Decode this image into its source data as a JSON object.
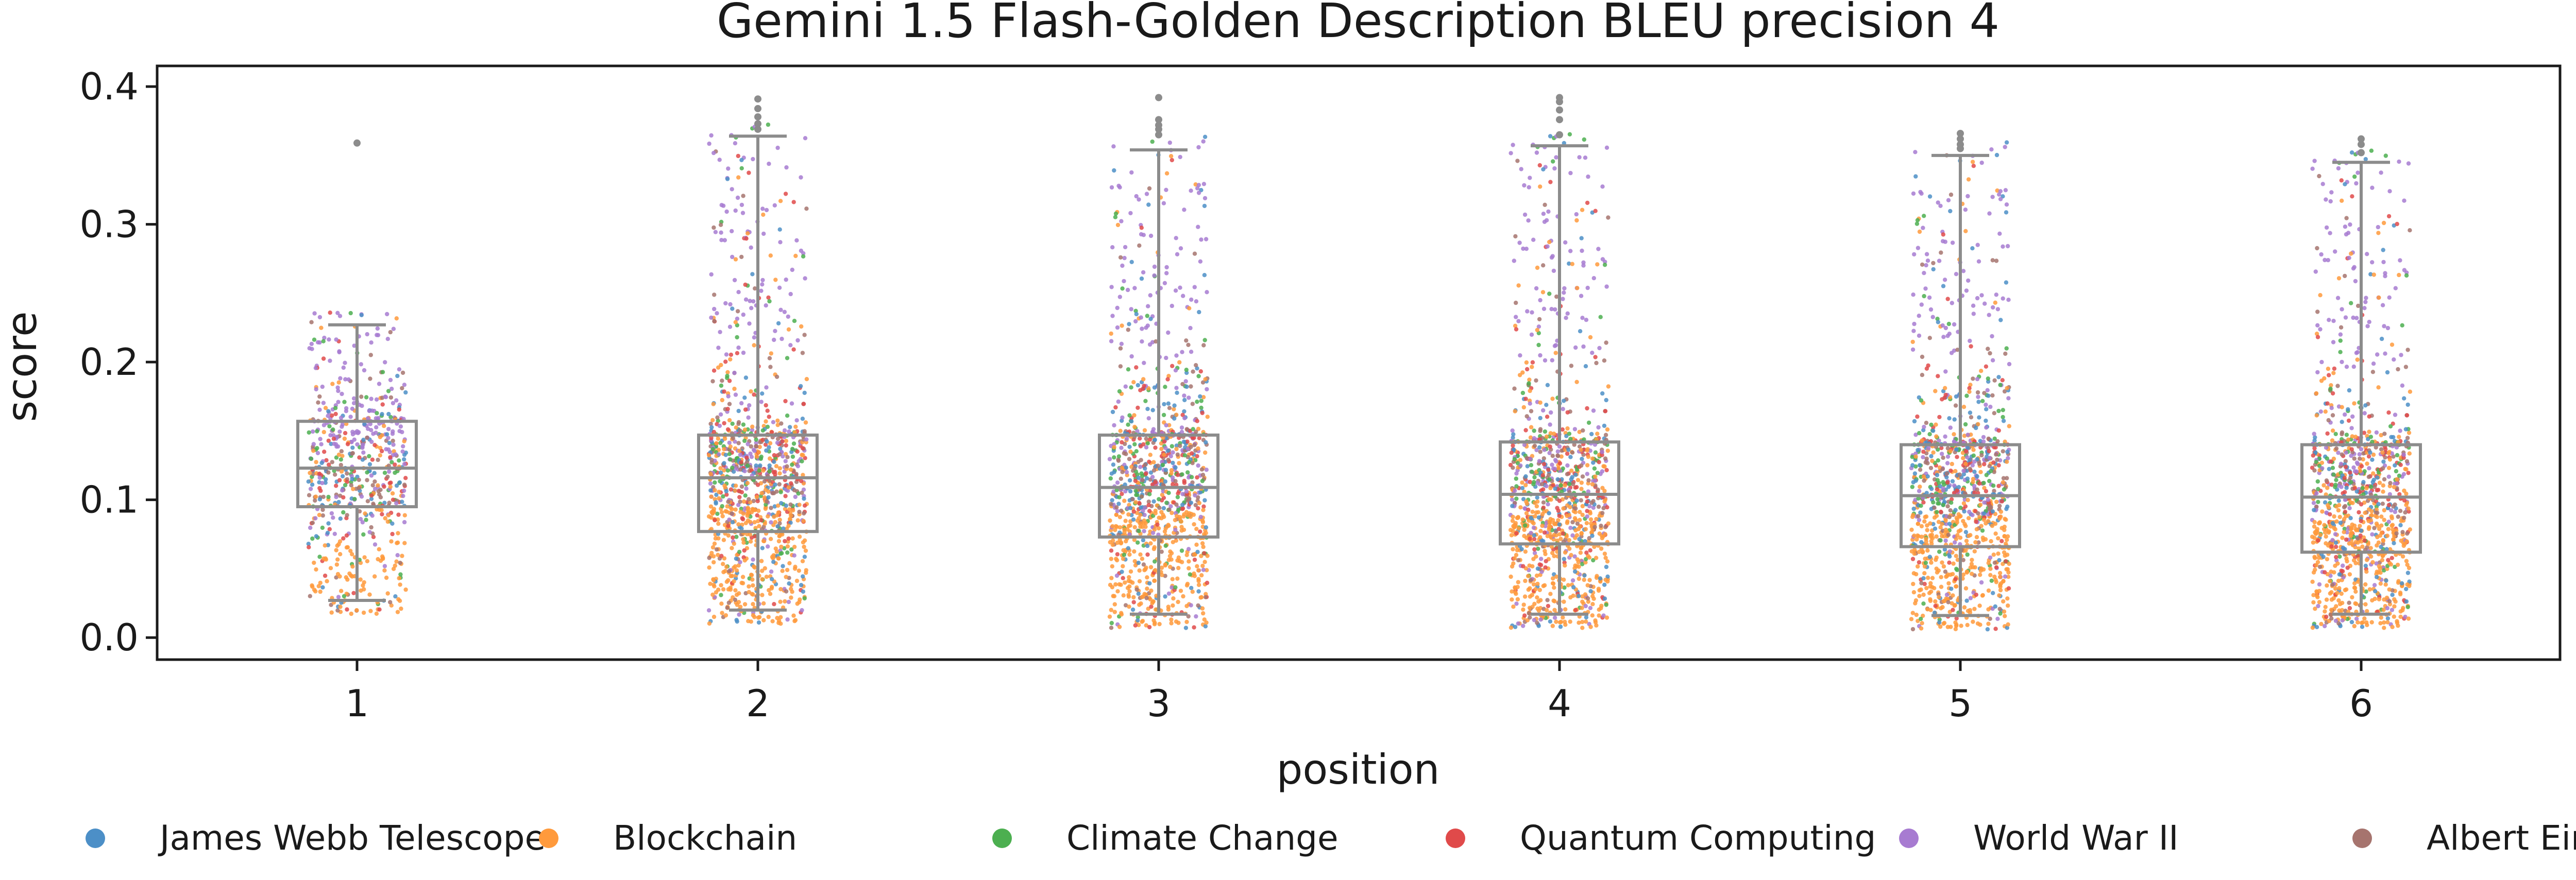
{
  "chart_data": {
    "type": "box",
    "title": "Gemini 1.5 Flash-Golden Description BLEU precision 4",
    "xlabel": "position",
    "ylabel": "score",
    "categories": [
      "1",
      "2",
      "3",
      "4",
      "5",
      "6"
    ],
    "ylim": [
      -0.016,
      0.415
    ],
    "yticks": [
      0.0,
      0.1,
      0.2,
      0.3,
      0.4
    ],
    "ytick_labels": [
      "0.0",
      "0.1",
      "0.2",
      "0.3",
      "0.4"
    ],
    "grid": false,
    "legend_position": "bottom",
    "boxes": [
      {
        "position": "1",
        "whisker_low": 0.027,
        "q1": 0.095,
        "median": 0.123,
        "q3": 0.157,
        "whisker_high": 0.227,
        "outliers": [
          0.359
        ]
      },
      {
        "position": "2",
        "whisker_low": 0.02,
        "q1": 0.077,
        "median": 0.116,
        "q3": 0.147,
        "whisker_high": 0.364,
        "outliers": [
          0.369,
          0.373,
          0.378,
          0.384,
          0.391
        ]
      },
      {
        "position": "3",
        "whisker_low": 0.017,
        "q1": 0.073,
        "median": 0.109,
        "q3": 0.147,
        "whisker_high": 0.354,
        "outliers": [
          0.365,
          0.369,
          0.372,
          0.376,
          0.392
        ]
      },
      {
        "position": "4",
        "whisker_low": 0.017,
        "q1": 0.068,
        "median": 0.104,
        "q3": 0.142,
        "whisker_high": 0.357,
        "outliers": [
          0.365,
          0.376,
          0.383,
          0.389,
          0.392
        ]
      },
      {
        "position": "5",
        "whisker_low": 0.016,
        "q1": 0.066,
        "median": 0.103,
        "q3": 0.14,
        "whisker_high": 0.35,
        "outliers": [
          0.355,
          0.358,
          0.362,
          0.366
        ]
      },
      {
        "position": "6",
        "whisker_low": 0.017,
        "q1": 0.062,
        "median": 0.102,
        "q3": 0.14,
        "whisker_high": 0.345,
        "outliers": [
          0.352,
          0.358,
          0.362
        ]
      }
    ],
    "series": [
      {
        "name": "James Webb Telescope",
        "color": "#4c8fc7"
      },
      {
        "name": "Blockchain",
        "color": "#ff9a3c"
      },
      {
        "name": "Climate Change",
        "color": "#4caf50"
      },
      {
        "name": "Quantum Computing",
        "color": "#e04a4a"
      },
      {
        "name": "World War II",
        "color": "#a77bd1"
      },
      {
        "name": "Albert Einstein",
        "color": "#a6746e"
      }
    ],
    "box_color": "#8c8c8c"
  }
}
